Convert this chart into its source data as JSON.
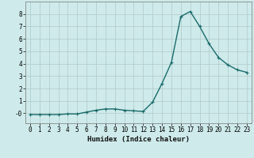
{
  "x": [
    0,
    1,
    2,
    3,
    4,
    5,
    6,
    7,
    8,
    9,
    10,
    11,
    12,
    13,
    14,
    15,
    16,
    17,
    18,
    19,
    20,
    21,
    22,
    23
  ],
  "y": [
    -0.1,
    -0.1,
    -0.1,
    -0.1,
    -0.05,
    -0.05,
    0.1,
    0.25,
    0.35,
    0.35,
    0.25,
    0.2,
    0.15,
    0.9,
    2.4,
    4.1,
    7.8,
    8.2,
    7.0,
    5.6,
    4.5,
    3.9,
    3.5,
    3.3
  ],
  "line_color": "#1a6b6b",
  "marker": "+",
  "marker_size": 3.5,
  "linewidth": 1.0,
  "xlabel": "Humidex (Indice chaleur)",
  "xlim": [
    -0.5,
    23.5
  ],
  "ylim": [
    -0.8,
    9.0
  ],
  "yticks": [
    0,
    1,
    2,
    3,
    4,
    5,
    6,
    7,
    8
  ],
  "ytick_labels": [
    "-0",
    "1",
    "2",
    "3",
    "4",
    "5",
    "6",
    "7",
    "8"
  ],
  "xticks": [
    0,
    1,
    2,
    3,
    4,
    5,
    6,
    7,
    8,
    9,
    10,
    11,
    12,
    13,
    14,
    15,
    16,
    17,
    18,
    19,
    20,
    21,
    22,
    23
  ],
  "bg_color": "#ceeaea",
  "grid_color": "#b0c8c8",
  "tick_fontsize": 5.5,
  "xlabel_fontsize": 6.5
}
